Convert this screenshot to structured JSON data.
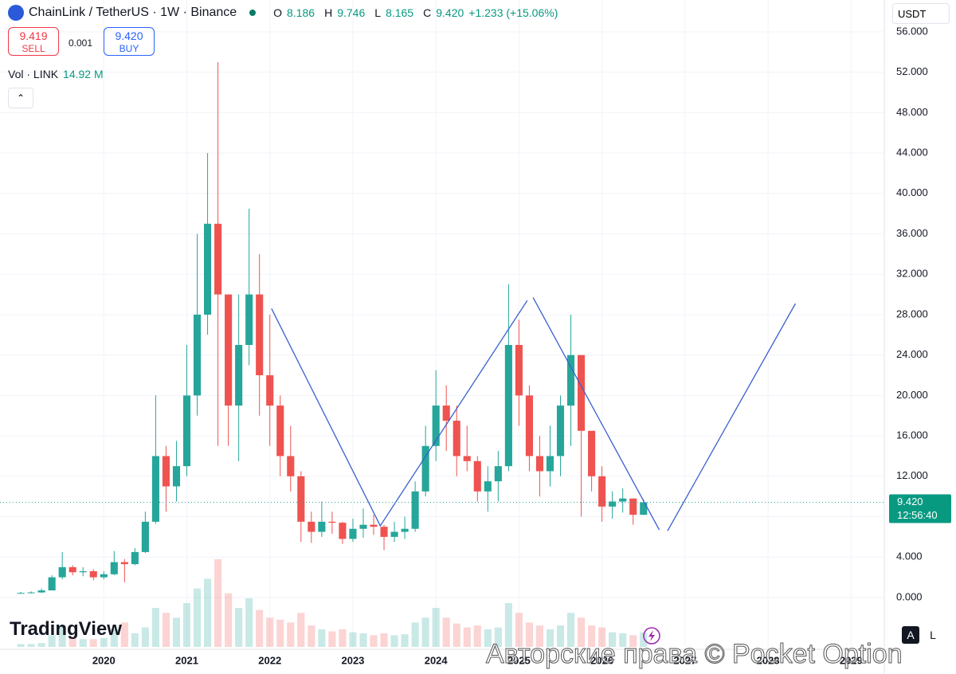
{
  "header": {
    "symbol": "ChainLink / TetherUS · 1W · Binance",
    "ohlc": [
      {
        "key": "O",
        "value": "8.186"
      },
      {
        "key": "H",
        "value": "9.746"
      },
      {
        "key": "L",
        "value": "8.165"
      },
      {
        "key": "C",
        "value": "9.420"
      }
    ],
    "change": "+1.233 (+15.06%)",
    "sell": {
      "price": "9.419",
      "label": "SELL"
    },
    "spread": "0.001",
    "buy": {
      "price": "9.420",
      "label": "BUY"
    },
    "volume": {
      "label": "Vol · LINK",
      "value": "14.92 M"
    },
    "currency": "USDT"
  },
  "chart_data": {
    "type": "candlestick",
    "x": [
      2019.0,
      2019.125,
      2019.25,
      2019.375,
      2019.5,
      2019.625,
      2019.75,
      2019.875,
      2020.0,
      2020.125,
      2020.25,
      2020.375,
      2020.5,
      2020.625,
      2020.75,
      2020.875,
      2021.0,
      2021.125,
      2021.25,
      2021.375,
      2021.5,
      2021.625,
      2021.75,
      2021.875,
      2022.0,
      2022.125,
      2022.25,
      2022.375,
      2022.5,
      2022.625,
      2022.75,
      2022.875,
      2023.0,
      2023.125,
      2023.25,
      2023.375,
      2023.5,
      2023.625,
      2023.75,
      2023.875,
      2024.0,
      2024.125,
      2024.25,
      2024.375,
      2024.5,
      2024.625,
      2024.75,
      2024.875,
      2025.0,
      2025.125,
      2025.25,
      2025.375,
      2025.5,
      2025.625,
      2025.75,
      2025.875,
      2026.0,
      2026.125,
      2026.25,
      2026.375,
      2026.5
    ],
    "open": [
      0.42,
      0.45,
      0.5,
      0.7,
      2.0,
      3.0,
      2.5,
      2.6,
      2.0,
      2.3,
      3.5,
      3.3,
      4.5,
      7.5,
      14,
      11,
      13,
      20,
      28,
      37,
      30,
      19,
      25,
      30,
      22,
      19,
      14,
      12,
      7.5,
      6.5,
      7.5,
      7.4,
      5.8,
      6.8,
      7.2,
      7.0,
      6.0,
      6.5,
      6.8,
      10.5,
      15,
      19,
      17.5,
      14,
      13.5,
      10.5,
      11.5,
      13,
      25,
      20,
      14,
      12.5,
      14,
      19,
      24,
      16.5,
      12,
      9,
      9.5,
      9.8,
      8.186
    ],
    "high": [
      0.55,
      0.6,
      0.9,
      2.2,
      4.5,
      3.2,
      3.0,
      2.8,
      2.6,
      4.6,
      3.8,
      4.9,
      8.5,
      20,
      15,
      15.5,
      25,
      36,
      44,
      53,
      30,
      30,
      38.5,
      34,
      28,
      20,
      17,
      12.5,
      8.5,
      9.5,
      8.5,
      7.5,
      7.8,
      8.8,
      8.2,
      7.2,
      7.5,
      8.0,
      11.5,
      17,
      22.5,
      21,
      19,
      17,
      14,
      13,
      14.5,
      31,
      27.5,
      21,
      16,
      17,
      20,
      28,
      24,
      16,
      13,
      10.5,
      10.8,
      9.8,
      9.746
    ],
    "low": [
      0.4,
      0.4,
      0.45,
      0.7,
      1.8,
      2.2,
      2.1,
      1.7,
      1.8,
      2.2,
      1.5,
      3.2,
      4.4,
      7.3,
      8.5,
      9.5,
      12,
      18,
      26,
      15,
      15,
      13.5,
      23,
      18,
      15,
      12,
      10.5,
      5.5,
      5.4,
      6,
      6.3,
      5.3,
      5.5,
      5.9,
      6.2,
      4.7,
      5.5,
      5.8,
      6.5,
      10,
      13.5,
      14.5,
      12,
      12.5,
      9.5,
      8.5,
      9.5,
      12.5,
      17,
      12.5,
      10,
      11,
      12,
      15,
      8,
      10.5,
      7.5,
      7.8,
      8.4,
      7.2,
      8.165
    ],
    "close": [
      0.45,
      0.5,
      0.7,
      2.0,
      3.0,
      2.5,
      2.6,
      2.0,
      2.3,
      3.5,
      3.3,
      4.5,
      7.5,
      14,
      11,
      13,
      20,
      28,
      37,
      30,
      19,
      25,
      30,
      22,
      19,
      14,
      12,
      7.5,
      6.5,
      7.5,
      7.4,
      5.8,
      6.8,
      7.2,
      7.0,
      6.0,
      6.5,
      6.8,
      10.5,
      15,
      19,
      17.5,
      14,
      13.5,
      10.5,
      11.5,
      13,
      25,
      20,
      14,
      12.5,
      14,
      19,
      24,
      16.5,
      12,
      9,
      9.5,
      9.8,
      8.186,
      9.42
    ],
    "volume": [
      3,
      3,
      4,
      12,
      22,
      10,
      8,
      8,
      9,
      18,
      25,
      14,
      20,
      40,
      35,
      30,
      45,
      60,
      70,
      90,
      55,
      40,
      50,
      38,
      30,
      28,
      25,
      35,
      22,
      18,
      16,
      18,
      15,
      14,
      12,
      14,
      12,
      13,
      25,
      30,
      40,
      30,
      24,
      20,
      22,
      18,
      20,
      45,
      35,
      25,
      22,
      18,
      22,
      35,
      30,
      22,
      20,
      15,
      14,
      12,
      14.92
    ],
    "up_color": "#26a69a",
    "down_color": "#ef5350",
    "xlim": [
      2018.75,
      2029.4
    ],
    "xticks": [
      2020,
      2021,
      2022,
      2023,
      2024,
      2025,
      2026,
      2027,
      2028,
      2029
    ],
    "ylim": [
      -5.13,
      59.15
    ],
    "yticks": [
      {
        "value": 0,
        "label": "0.000"
      },
      {
        "value": 4,
        "label": "4.000"
      },
      {
        "value": 8,
        "label": "8.000"
      },
      {
        "value": 12,
        "label": "12.000"
      },
      {
        "value": 16,
        "label": "16.000"
      },
      {
        "value": 20,
        "label": "20.000"
      },
      {
        "value": 24,
        "label": "24.000"
      },
      {
        "value": 28,
        "label": "28.000"
      },
      {
        "value": 32,
        "label": "32.000"
      },
      {
        "value": 36,
        "label": "36.000"
      },
      {
        "value": 40,
        "label": "40.000"
      },
      {
        "value": 44,
        "label": "44.000"
      },
      {
        "value": 48,
        "label": "48.000"
      },
      {
        "value": 52,
        "label": "52.000"
      },
      {
        "value": 56,
        "label": "56.000"
      }
    ],
    "grid": true,
    "last_price": {
      "value": 9.42,
      "label": "9.420"
    },
    "countdown": "12:56:40",
    "drawing_color": "#3a5fcd",
    "drawings": [
      {
        "points": [
          [
            2022.02,
            28.6
          ],
          [
            2023.33,
            7.1
          ],
          [
            2025.1,
            29.4
          ]
        ]
      },
      {
        "points": [
          [
            2025.17,
            29.7
          ],
          [
            2026.69,
            6.7
          ]
        ]
      },
      {
        "points": [
          [
            2026.79,
            6.6
          ],
          [
            2028.33,
            29.1
          ]
        ]
      }
    ]
  },
  "footer": {
    "logo": "TradingView",
    "auto": "A",
    "log": "L",
    "watermark": "Авторские права © Pocket Option"
  }
}
